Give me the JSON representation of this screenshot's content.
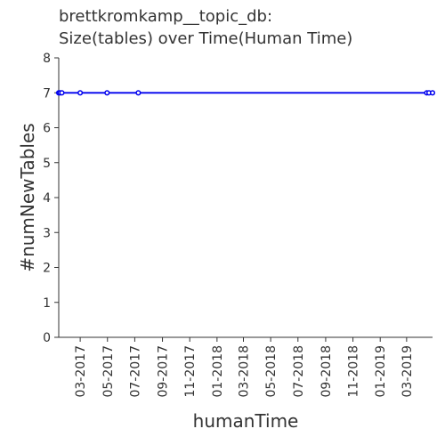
{
  "chart_data": {
    "type": "line",
    "title": [
      "brettkromkamp__topic_db:",
      "Size(tables) over Time(Human Time)"
    ],
    "xlabel": "humanTime",
    "ylabel": "#numNewTables",
    "xlim": [
      "2017-01-12",
      "2019-04-28"
    ],
    "ylim": [
      0,
      8
    ],
    "yticks": [
      0,
      1,
      2,
      3,
      4,
      5,
      6,
      7,
      8
    ],
    "xticks": [
      {
        "date": "2017-03-01",
        "label": "03-2017"
      },
      {
        "date": "2017-05-01",
        "label": "05-2017"
      },
      {
        "date": "2017-07-01",
        "label": "07-2017"
      },
      {
        "date": "2017-09-01",
        "label": "09-2017"
      },
      {
        "date": "2017-11-01",
        "label": "11-2017"
      },
      {
        "date": "2018-01-01",
        "label": "01-2018"
      },
      {
        "date": "2018-03-01",
        "label": "03-2018"
      },
      {
        "date": "2018-05-01",
        "label": "05-2018"
      },
      {
        "date": "2018-07-01",
        "label": "07-2018"
      },
      {
        "date": "2018-09-01",
        "label": "09-2018"
      },
      {
        "date": "2018-11-01",
        "label": "11-2018"
      },
      {
        "date": "2019-01-01",
        "label": "01-2019"
      },
      {
        "date": "2019-03-01",
        "label": "03-2019"
      }
    ],
    "series": [
      {
        "color": "#0000ee",
        "points": [
          {
            "x": "2017-01-12",
            "y": 7
          },
          {
            "x": "2017-01-15",
            "y": 7
          },
          {
            "x": "2017-01-19",
            "y": 7
          },
          {
            "x": "2017-03-01",
            "y": 7
          },
          {
            "x": "2017-04-30",
            "y": 7
          },
          {
            "x": "2017-07-09",
            "y": 7
          },
          {
            "x": "2019-04-15",
            "y": 7
          },
          {
            "x": "2019-04-20",
            "y": 7
          },
          {
            "x": "2019-04-28",
            "y": 7
          }
        ]
      }
    ],
    "grid": false,
    "legend": "none"
  }
}
